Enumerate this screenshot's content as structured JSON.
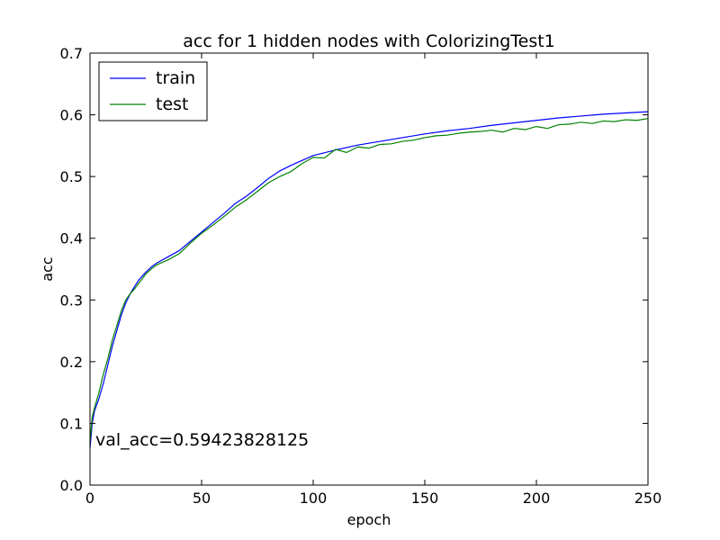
{
  "chart_data": {
    "type": "line",
    "title": "acc for 1 hidden nodes with ColorizingTest1",
    "xlabel": "epoch",
    "ylabel": "acc",
    "xlim": [
      0,
      250
    ],
    "ylim": [
      0.0,
      0.7
    ],
    "xticks": [
      0,
      50,
      100,
      150,
      200,
      250
    ],
    "xtick_labels": [
      "0",
      "50",
      "100",
      "150",
      "200",
      "250"
    ],
    "yticks": [
      0.0,
      0.1,
      0.2,
      0.3,
      0.4,
      0.5,
      0.6,
      0.7
    ],
    "ytick_labels": [
      "0.0",
      "0.1",
      "0.2",
      "0.3",
      "0.4",
      "0.5",
      "0.6",
      "0.7"
    ],
    "grid": false,
    "legend_position": "top-left",
    "annotation": "val_acc=0.59423828125",
    "series": [
      {
        "name": "train",
        "color": "#0000ff",
        "x": [
          0,
          1,
          2,
          4,
          6,
          8,
          10,
          12,
          14,
          16,
          18,
          20,
          22,
          25,
          28,
          30,
          35,
          40,
          45,
          50,
          55,
          60,
          65,
          70,
          75,
          80,
          85,
          90,
          95,
          100,
          110,
          120,
          130,
          140,
          150,
          160,
          170,
          180,
          190,
          200,
          210,
          220,
          230,
          240,
          250
        ],
        "values": [
          0.06,
          0.1,
          0.12,
          0.14,
          0.165,
          0.195,
          0.225,
          0.25,
          0.275,
          0.295,
          0.31,
          0.322,
          0.333,
          0.345,
          0.355,
          0.36,
          0.37,
          0.38,
          0.395,
          0.41,
          0.425,
          0.44,
          0.456,
          0.468,
          0.482,
          0.497,
          0.509,
          0.518,
          0.526,
          0.534,
          0.543,
          0.551,
          0.557,
          0.563,
          0.569,
          0.574,
          0.578,
          0.583,
          0.587,
          0.591,
          0.595,
          0.598,
          0.601,
          0.603,
          0.605
        ]
      },
      {
        "name": "test",
        "color": "#008000",
        "x": [
          0,
          1,
          2,
          4,
          6,
          8,
          10,
          12,
          14,
          16,
          18,
          20,
          22,
          25,
          28,
          30,
          35,
          40,
          45,
          50,
          55,
          60,
          65,
          70,
          75,
          80,
          85,
          90,
          95,
          100,
          105,
          110,
          115,
          120,
          125,
          130,
          135,
          140,
          145,
          150,
          155,
          160,
          165,
          170,
          175,
          180,
          185,
          190,
          195,
          200,
          205,
          210,
          215,
          220,
          225,
          230,
          235,
          240,
          245,
          250
        ],
        "values": [
          0.07,
          0.11,
          0.125,
          0.15,
          0.18,
          0.205,
          0.235,
          0.258,
          0.282,
          0.3,
          0.31,
          0.318,
          0.328,
          0.342,
          0.352,
          0.357,
          0.365,
          0.375,
          0.392,
          0.408,
          0.421,
          0.435,
          0.45,
          0.462,
          0.476,
          0.49,
          0.5,
          0.508,
          0.521,
          0.531,
          0.53,
          0.544,
          0.539,
          0.548,
          0.546,
          0.552,
          0.553,
          0.557,
          0.559,
          0.563,
          0.566,
          0.567,
          0.57,
          0.572,
          0.573,
          0.575,
          0.572,
          0.578,
          0.576,
          0.581,
          0.578,
          0.584,
          0.585,
          0.588,
          0.586,
          0.59,
          0.589,
          0.592,
          0.591,
          0.594
        ]
      }
    ]
  }
}
